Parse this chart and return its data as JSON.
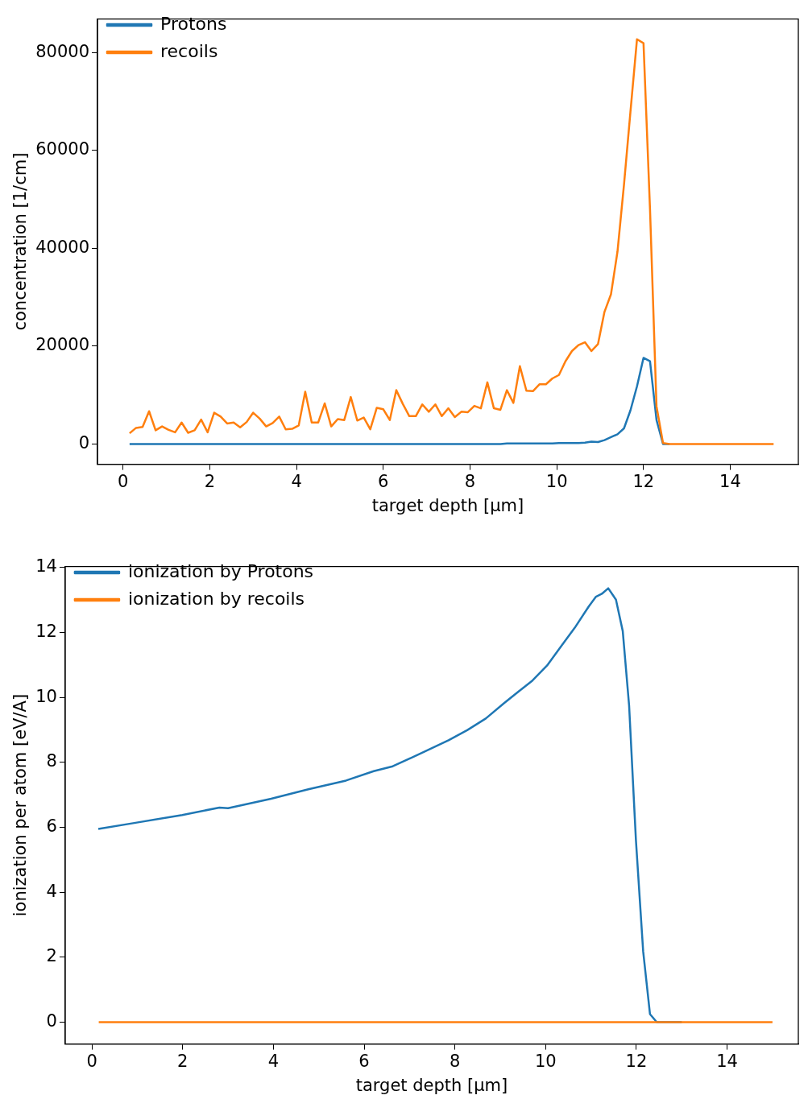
{
  "chart_data": [
    {
      "type": "line",
      "xlabel": "target depth [µm]",
      "ylabel": "concentration [1/cm]",
      "legend": "top left",
      "marker": "none",
      "line_style": "solid",
      "grid": false,
      "xlim": [
        -0.59,
        15.57
      ],
      "xticks": [
        0,
        2,
        4,
        6,
        8,
        10,
        12,
        14
      ],
      "ylim": [
        -4135,
        86835
      ],
      "yticks": [
        0,
        20000,
        40000,
        60000,
        80000
      ],
      "x": [
        0.15,
        0.3,
        0.45,
        0.6,
        0.75,
        0.9,
        1.05,
        1.2,
        1.35,
        1.5,
        1.65,
        1.8,
        1.95,
        2.1,
        2.25,
        2.4,
        2.55,
        2.7,
        2.85,
        3.0,
        3.15,
        3.3,
        3.45,
        3.6,
        3.75,
        3.9,
        4.05,
        4.2,
        4.35,
        4.5,
        4.65,
        4.8,
        4.95,
        5.1,
        5.25,
        5.4,
        5.55,
        5.7,
        5.85,
        6.0,
        6.15,
        6.3,
        6.45,
        6.6,
        6.75,
        6.9,
        7.05,
        7.2,
        7.35,
        7.5,
        7.65,
        7.8,
        7.95,
        8.1,
        8.25,
        8.4,
        8.55,
        8.7,
        8.85,
        9.0,
        9.15,
        9.3,
        9.45,
        9.6,
        9.75,
        9.9,
        10.05,
        10.2,
        10.35,
        10.5,
        10.65,
        10.8,
        10.95,
        11.1,
        11.25,
        11.4,
        11.55,
        11.7,
        11.85,
        12.0,
        12.15,
        12.3,
        12.45,
        12.6,
        12.75,
        12.9,
        13.05,
        13.2,
        13.35,
        13.5,
        13.65,
        13.8,
        13.95,
        14.1,
        14.25,
        14.4,
        14.55,
        14.7,
        14.85,
        15.0
      ],
      "series": [
        {
          "name": "Protons",
          "color": "#1f77b4",
          "values": [
            0,
            0,
            0,
            0,
            0,
            0,
            0,
            0,
            0,
            0,
            0,
            0,
            0,
            0,
            0,
            0,
            0,
            0,
            0,
            0,
            0,
            0,
            0,
            0,
            0,
            0,
            0,
            0,
            0,
            0,
            0,
            0,
            0,
            0,
            0,
            0,
            0,
            0,
            0,
            0,
            0,
            0,
            0,
            0,
            0,
            0,
            0,
            0,
            0,
            0,
            0,
            0,
            0,
            0,
            0,
            0,
            0,
            0,
            100,
            100,
            100,
            100,
            100,
            100,
            100,
            100,
            200,
            200,
            200,
            200,
            300,
            500,
            400,
            800,
            1400,
            2000,
            3200,
            6900,
            11800,
            17600,
            16900,
            4900,
            0,
            0,
            null,
            null,
            null,
            null,
            null,
            null,
            null,
            null,
            null,
            null,
            null,
            null,
            null,
            null,
            null,
            null
          ]
        },
        {
          "name": "recoils",
          "color": "#ff7f0e",
          "values": [
            2200,
            3300,
            3500,
            6700,
            2800,
            3600,
            2900,
            2400,
            4400,
            2300,
            2800,
            5000,
            2400,
            6400,
            5600,
            4200,
            4400,
            3400,
            4500,
            6400,
            5200,
            3600,
            4300,
            5600,
            3000,
            3100,
            3800,
            10700,
            4400,
            4400,
            8300,
            3600,
            5100,
            4900,
            9600,
            4800,
            5400,
            3000,
            7400,
            7100,
            4900,
            11000,
            8200,
            5700,
            5700,
            8100,
            6600,
            8100,
            5700,
            7300,
            5500,
            6600,
            6500,
            7800,
            7300,
            12600,
            7300,
            7000,
            11000,
            8400,
            15900,
            10900,
            10800,
            12200,
            12200,
            13400,
            14100,
            16900,
            19000,
            20200,
            20800,
            19000,
            20400,
            27000,
            30600,
            39300,
            53000,
            68000,
            82700,
            81900,
            48000,
            7700,
            200,
            0,
            0,
            0,
            0,
            0,
            0,
            0,
            0,
            0,
            0,
            0,
            0,
            0,
            0,
            0,
            0,
            0
          ]
        }
      ]
    },
    {
      "type": "line",
      "xlabel": "target depth [µm]",
      "ylabel": "ionization per atom [eV/A]",
      "legend": "top left",
      "marker": "none",
      "line_style": "solid",
      "grid": false,
      "xlim": [
        -0.59,
        15.57
      ],
      "xticks": [
        0,
        2,
        4,
        6,
        8,
        10,
        12,
        14
      ],
      "ylim": [
        -0.67,
        14.03
      ],
      "yticks": [
        0,
        2,
        4,
        6,
        8,
        10,
        12,
        14
      ],
      "series": [
        {
          "name": "ionization by Protons",
          "color": "#1f77b4",
          "x": [
            0.14,
            0.96,
            1.99,
            2.81,
            3.0,
            3.95,
            4.77,
            5.6,
            6.21,
            6.63,
            7.24,
            7.86,
            8.27,
            8.68,
            9.09,
            9.4,
            9.71,
            10.03,
            10.34,
            10.64,
            10.95,
            11.11,
            11.24,
            11.38,
            11.55,
            11.7,
            11.84,
            11.99,
            12.15,
            12.3,
            12.45,
            13.0
          ],
          "values": [
            5.95,
            6.14,
            6.38,
            6.61,
            6.59,
            6.88,
            7.17,
            7.44,
            7.73,
            7.88,
            8.27,
            8.68,
            8.99,
            9.35,
            9.83,
            10.18,
            10.52,
            10.98,
            11.57,
            12.14,
            12.8,
            13.1,
            13.19,
            13.36,
            13.01,
            12.04,
            9.75,
            5.61,
            2.18,
            0.25,
            0,
            0
          ]
        },
        {
          "name": "ionization by recoils",
          "color": "#ff7f0e",
          "x": [
            0.15,
            12.0,
            15.0
          ],
          "values": [
            0,
            0,
            0
          ]
        }
      ]
    }
  ]
}
